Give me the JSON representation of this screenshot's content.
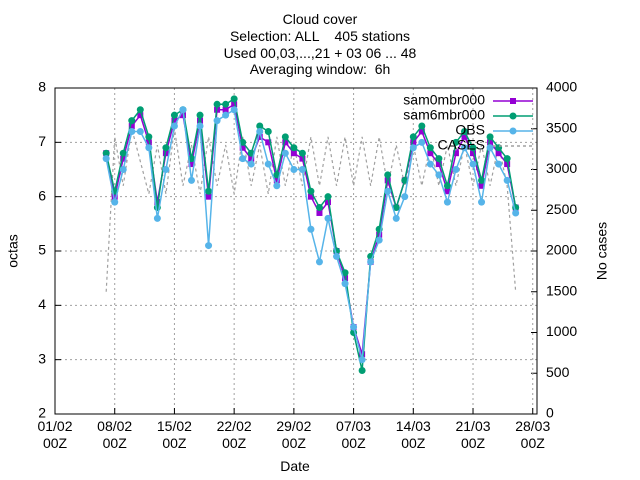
{
  "chart_data": {
    "type": "line",
    "title": [
      "Cloud cover",
      "Selection: ALL    405 stations",
      "Used 00,03,...,21 + 03 06 ... 48",
      "Averaging window:  6h"
    ],
    "xlabel": "Date",
    "ylabel": "octas",
    "y2label": "No cases",
    "grid": true,
    "legend": "top-right",
    "xlim": [
      "01/02 00Z",
      "28/03 12Z"
    ],
    "xticks": [
      {
        "value": "01/02 00Z",
        "label": "01/02\n00Z"
      },
      {
        "value": "08/02 00Z",
        "label": "08/02\n00Z"
      },
      {
        "value": "15/02 00Z",
        "label": "15/02\n00Z"
      },
      {
        "value": "22/02 00Z",
        "label": "22/02\n00Z"
      },
      {
        "value": "29/02 00Z",
        "label": "29/02\n00Z"
      },
      {
        "value": "07/03 00Z",
        "label": "07/03\n00Z"
      },
      {
        "value": "14/03 00Z",
        "label": "14/03\n00Z"
      },
      {
        "value": "21/03 00Z",
        "label": "21/03\n00Z"
      },
      {
        "value": "28/03 00Z",
        "label": "28/03\n00Z"
      }
    ],
    "ylim": [
      2,
      8
    ],
    "yticks": [
      2,
      3,
      4,
      5,
      6,
      7,
      8
    ],
    "y2lim": [
      0,
      4000
    ],
    "y2ticks": [
      0,
      500,
      1000,
      1500,
      2000,
      2500,
      3000,
      3500,
      4000
    ],
    "x": [
      "07/02 00Z",
      "08/02 00Z",
      "09/02 00Z",
      "10/02 00Z",
      "11/02 00Z",
      "12/02 00Z",
      "13/02 00Z",
      "14/02 00Z",
      "15/02 00Z",
      "16/02 00Z",
      "17/02 00Z",
      "18/02 00Z",
      "19/02 00Z",
      "20/02 00Z",
      "21/02 00Z",
      "22/02 00Z",
      "23/02 00Z",
      "24/02 00Z",
      "25/02 00Z",
      "26/02 00Z",
      "27/02 00Z",
      "28/02 00Z",
      "29/02 00Z",
      "01/03 00Z",
      "02/03 00Z",
      "03/03 00Z",
      "04/03 00Z",
      "05/03 00Z",
      "06/03 00Z",
      "07/03 00Z",
      "08/03 00Z",
      "09/03 00Z",
      "10/03 00Z",
      "11/03 00Z",
      "12/03 00Z",
      "13/03 00Z",
      "14/03 00Z",
      "15/03 00Z",
      "16/03 00Z",
      "17/03 00Z",
      "18/03 00Z",
      "19/03 00Z",
      "20/03 00Z",
      "21/03 00Z",
      "22/03 00Z",
      "23/03 00Z",
      "24/03 00Z",
      "25/03 00Z",
      "26/03 00Z"
    ],
    "series": [
      {
        "name": "sam0mbr000",
        "color": "#9400d3",
        "marker": "square",
        "values": [
          6.8,
          6.0,
          6.7,
          7.3,
          7.5,
          7.0,
          5.9,
          6.8,
          7.4,
          7.5,
          6.6,
          7.4,
          6.0,
          7.6,
          7.6,
          7.7,
          6.9,
          6.7,
          7.1,
          7.0,
          6.3,
          7.0,
          6.8,
          6.7,
          6.0,
          5.7,
          5.9,
          5.0,
          4.5,
          3.6,
          3.1,
          4.8,
          5.3,
          6.3,
          5.8,
          6.3,
          7.0,
          7.2,
          6.8,
          6.6,
          6.1,
          6.8,
          7.1,
          6.8,
          6.2,
          7.0,
          6.8,
          6.6,
          5.8
        ]
      },
      {
        "name": "sam6mbr000",
        "color": "#009e73",
        "marker": "circle",
        "values": [
          6.8,
          6.1,
          6.8,
          7.4,
          7.6,
          7.1,
          5.8,
          6.9,
          7.5,
          7.6,
          6.7,
          7.5,
          6.1,
          7.7,
          7.7,
          7.8,
          7.0,
          6.8,
          7.3,
          7.2,
          6.4,
          7.1,
          6.9,
          6.8,
          6.1,
          5.8,
          6.0,
          5.0,
          4.6,
          3.5,
          2.8,
          4.9,
          5.4,
          6.4,
          5.8,
          6.3,
          7.1,
          7.3,
          6.9,
          6.7,
          6.2,
          7.0,
          7.2,
          6.9,
          6.3,
          7.1,
          6.9,
          6.7,
          5.8
        ]
      },
      {
        "name": "OBS",
        "color": "#56b4e9",
        "marker": "circle",
        "values": [
          6.7,
          5.9,
          6.5,
          7.2,
          7.2,
          6.9,
          5.6,
          6.5,
          7.3,
          7.6,
          6.3,
          7.3,
          5.1,
          7.4,
          7.5,
          7.6,
          6.7,
          6.6,
          7.2,
          6.6,
          6.2,
          6.8,
          6.5,
          6.5,
          5.4,
          4.8,
          5.6,
          4.9,
          4.4,
          3.6,
          3.0,
          4.8,
          5.2,
          6.1,
          5.6,
          6.0,
          6.9,
          7.0,
          6.6,
          6.4,
          5.9,
          6.5,
          6.9,
          6.6,
          5.9,
          6.9,
          6.6,
          6.3,
          5.7
        ]
      },
      {
        "name": "CASES",
        "color": "#a0a0a0",
        "axis": "y2",
        "dash": true,
        "values": [
          1500,
          3400,
          2800,
          3500,
          3100,
          2700,
          3300,
          2700,
          3500,
          2800,
          3300,
          2700,
          3400,
          2800,
          3300,
          2700,
          3400,
          2800,
          3300,
          2700,
          3400,
          2800,
          3300,
          2800,
          3400,
          2800,
          3400,
          2800,
          3400,
          2800,
          3400,
          2800,
          3400,
          2800,
          3300,
          2800,
          3300,
          2800,
          3300,
          2800,
          3300,
          2800,
          3300,
          2800,
          3300,
          2800,
          3300,
          2800,
          1500
        ]
      }
    ]
  }
}
